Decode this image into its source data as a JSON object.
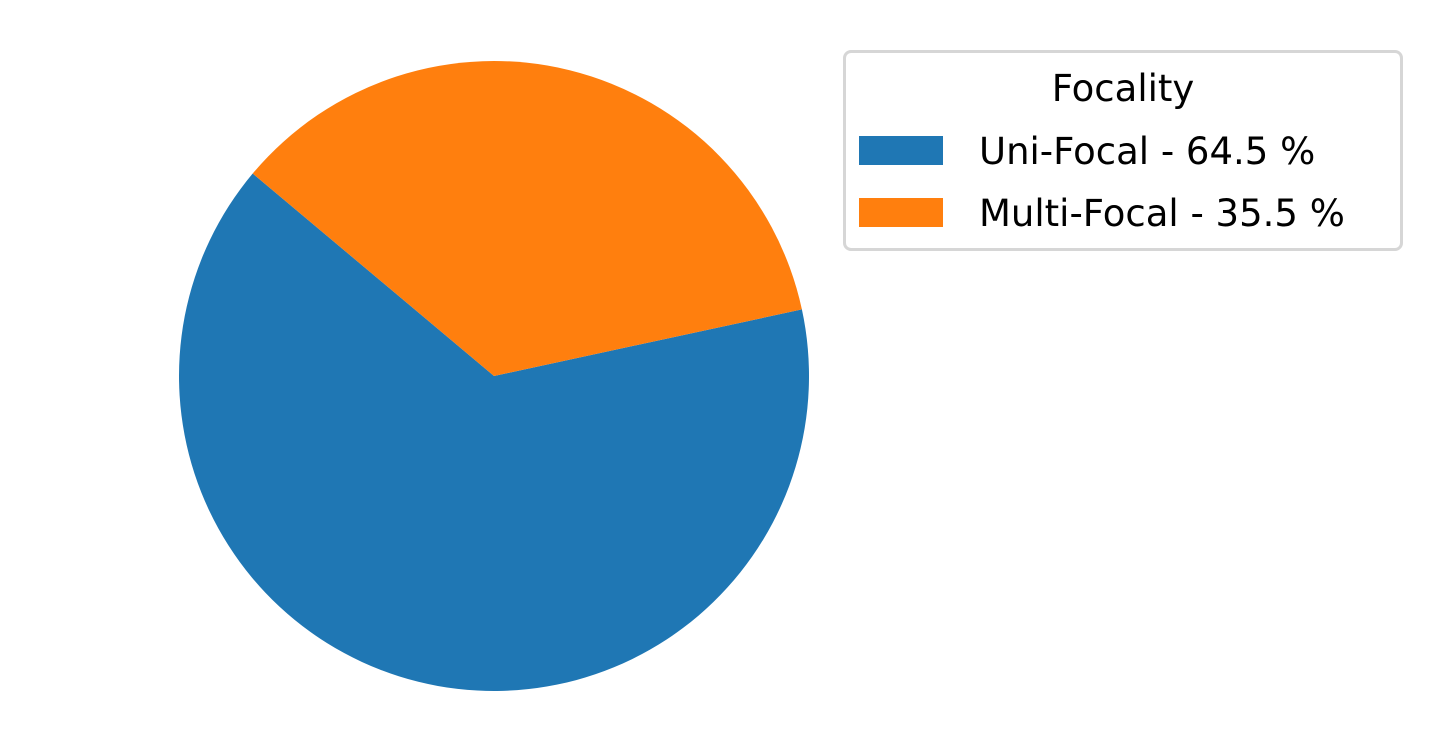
{
  "chart_data": {
    "type": "pie",
    "title": "",
    "slices": [
      {
        "label": "Uni-Focal",
        "value": 64.5,
        "color": "#1f77b4"
      },
      {
        "label": "Multi-Focal",
        "value": 35.5,
        "color": "#ff7f0e"
      }
    ],
    "start_angle_deg": 140,
    "direction": "counterclockwise",
    "legend": {
      "title": "Focality",
      "placement": "upper-right, outside plot",
      "entries": [
        "Uni-Focal - 64.5 %",
        "Multi-Focal - 35.5 %"
      ]
    }
  }
}
